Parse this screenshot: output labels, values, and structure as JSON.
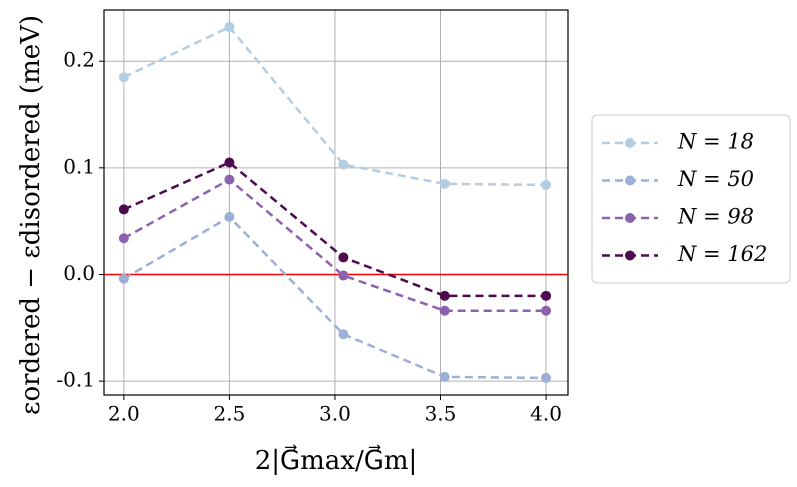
{
  "chart_data": {
    "type": "line",
    "x_label": "2|G⃗max/G⃗m|",
    "y_label": "εordered − εdisordered (meV)",
    "x": [
      2.0,
      2.5,
      3.04,
      3.52,
      4.0
    ],
    "series": [
      {
        "name": "N = 18",
        "color": "#b3cde3",
        "values": [
          0.185,
          0.232,
          0.103,
          0.085,
          0.084
        ]
      },
      {
        "name": "N = 50",
        "color": "#9bb0d4",
        "values": [
          -0.004,
          0.054,
          -0.056,
          -0.096,
          -0.097
        ]
      },
      {
        "name": "N = 98",
        "color": "#8c62ae",
        "values": [
          0.034,
          0.089,
          -0.001,
          -0.034,
          -0.034
        ]
      },
      {
        "name": "N = 162",
        "color": "#4d0a4f",
        "values": [
          0.061,
          0.105,
          0.016,
          -0.02,
          -0.02
        ]
      }
    ],
    "xlim": [
      1.906,
      4.104
    ],
    "ylim": [
      -0.113,
      0.248
    ],
    "xticks": [
      {
        "value": 2.0,
        "label": "2.0"
      },
      {
        "value": 2.5,
        "label": "2.5"
      },
      {
        "value": 3.0,
        "label": "3.0"
      },
      {
        "value": 3.5,
        "label": "3.5"
      },
      {
        "value": 4.0,
        "label": "4.0"
      }
    ],
    "yticks": [
      -0.1,
      {
        "value": 0.0,
        "label": "0.0"
      },
      0.1,
      0.2
    ],
    "grid": true,
    "hline": {
      "y": 0,
      "color": "#ff0000"
    },
    "line_style": "dashed",
    "legend": "right"
  }
}
